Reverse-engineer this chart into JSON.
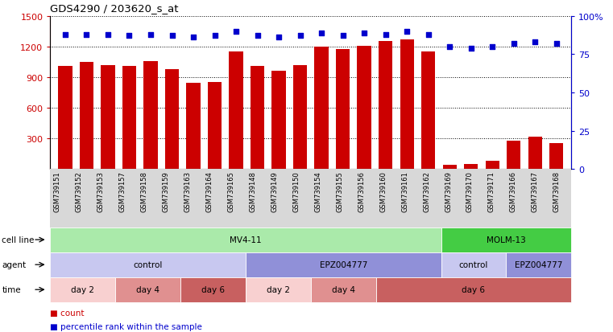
{
  "title": "GDS4290 / 203620_s_at",
  "samples": [
    "GSM739151",
    "GSM739152",
    "GSM739153",
    "GSM739157",
    "GSM739158",
    "GSM739159",
    "GSM739163",
    "GSM739164",
    "GSM739165",
    "GSM739148",
    "GSM739149",
    "GSM739150",
    "GSM739154",
    "GSM739155",
    "GSM739156",
    "GSM739160",
    "GSM739161",
    "GSM739162",
    "GSM739169",
    "GSM739170",
    "GSM739171",
    "GSM739166",
    "GSM739167",
    "GSM739168"
  ],
  "counts": [
    1010,
    1050,
    1020,
    1010,
    1055,
    980,
    840,
    850,
    1150,
    1010,
    960,
    1020,
    1195,
    1175,
    1210,
    1250,
    1270,
    1155,
    40,
    50,
    80,
    280,
    320,
    250
  ],
  "percentile": [
    88,
    88,
    88,
    87,
    88,
    87,
    86,
    87,
    90,
    87,
    86,
    87,
    89,
    87,
    89,
    88,
    90,
    88,
    80,
    79,
    80,
    82,
    83,
    82
  ],
  "ylim_left": [
    0,
    1500
  ],
  "ylim_right": [
    0,
    100
  ],
  "yticks_left": [
    300,
    600,
    900,
    1200,
    1500
  ],
  "yticks_right": [
    0,
    25,
    50,
    75,
    100
  ],
  "bar_color": "#cc0000",
  "dot_color": "#0000cc",
  "cell_line_spans": [
    {
      "label": "MV4-11",
      "start": 0,
      "end": 17,
      "color": "#aaeaaa"
    },
    {
      "label": "MOLM-13",
      "start": 18,
      "end": 23,
      "color": "#44cc44"
    }
  ],
  "agent_spans": [
    {
      "label": "control",
      "start": 0,
      "end": 8,
      "color": "#c8c8f0"
    },
    {
      "label": "EPZ004777",
      "start": 9,
      "end": 17,
      "color": "#9090d8"
    },
    {
      "label": "control",
      "start": 18,
      "end": 20,
      "color": "#c8c8f0"
    },
    {
      "label": "EPZ004777",
      "start": 21,
      "end": 23,
      "color": "#9090d8"
    }
  ],
  "time_spans": [
    {
      "label": "day 2",
      "start": 0,
      "end": 2,
      "color": "#f8d0d0"
    },
    {
      "label": "day 4",
      "start": 3,
      "end": 5,
      "color": "#e09090"
    },
    {
      "label": "day 6",
      "start": 6,
      "end": 8,
      "color": "#c86060"
    },
    {
      "label": "day 2",
      "start": 9,
      "end": 11,
      "color": "#f8d0d0"
    },
    {
      "label": "day 4",
      "start": 12,
      "end": 14,
      "color": "#e09090"
    },
    {
      "label": "day 6",
      "start": 15,
      "end": 23,
      "color": "#c86060"
    }
  ],
  "legend_count_color": "#cc0000",
  "legend_dot_color": "#0000cc"
}
